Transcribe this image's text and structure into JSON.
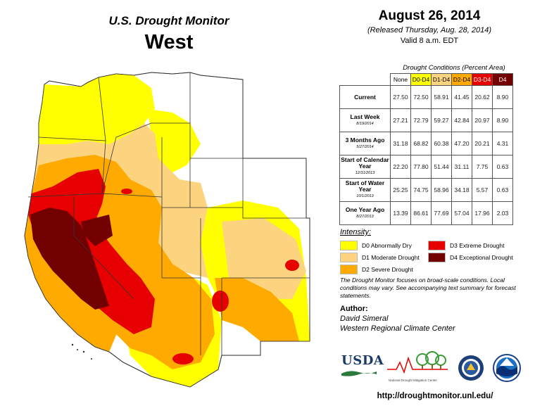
{
  "header": {
    "monitor_title": "U.S. Drought Monitor",
    "region": "West"
  },
  "date_block": {
    "date": "August 26, 2014",
    "released": "(Released Thursday, Aug. 28, 2014)",
    "valid": "Valid  8 a.m. EDT"
  },
  "table": {
    "title": "Drought Conditions (Percent Area)",
    "columns": [
      "None",
      "D0-D4",
      "D1-D4",
      "D2-D4",
      "D3-D4",
      "D4"
    ],
    "column_colors": [
      "#ffffff",
      "#ffff00",
      "#fcd37f",
      "#ffaa00",
      "#e60000",
      "#730000"
    ],
    "rows": [
      {
        "label": "Current",
        "date": "",
        "values": [
          "27.50",
          "72.50",
          "58.91",
          "41.45",
          "20.62",
          "8.90"
        ]
      },
      {
        "label": "Last Week",
        "date": "8/19/2014",
        "values": [
          "27.21",
          "72.79",
          "59.27",
          "42.84",
          "20.97",
          "8.90"
        ]
      },
      {
        "label": "3 Months Ago",
        "date": "5/27/2014",
        "values": [
          "31.18",
          "68.82",
          "60.38",
          "47.20",
          "20.21",
          "4.31"
        ]
      },
      {
        "label": "Start of Calendar Year",
        "date": "12/31/2013",
        "values": [
          "22.20",
          "77.80",
          "51.44",
          "31.11",
          "7.75",
          "0.63"
        ]
      },
      {
        "label": "Start of Water Year",
        "date": "10/1/2013",
        "values": [
          "25.25",
          "74.75",
          "58.96",
          "34.18",
          "5.57",
          "0.63"
        ]
      },
      {
        "label": "One Year Ago",
        "date": "8/27/2013",
        "values": [
          "13.39",
          "86.61",
          "77.69",
          "57.04",
          "17.96",
          "2.03"
        ]
      }
    ]
  },
  "legend": {
    "title": "Intensity:",
    "items": [
      {
        "label": "D0 Abnormally Dry",
        "color": "#ffff00"
      },
      {
        "label": "D1 Moderate Drought",
        "color": "#fcd37f"
      },
      {
        "label": "D2 Severe Drought",
        "color": "#ffaa00"
      },
      {
        "label": "D3 Extreme Drought",
        "color": "#e60000"
      },
      {
        "label": "D4 Exceptional Drought",
        "color": "#730000"
      }
    ]
  },
  "note": "The Drought Monitor focuses on broad-scale conditions. Local conditions may vary. See accompanying text summary for forecast statements.",
  "author": {
    "label": "Author:",
    "name": "David Simeral",
    "org": "Western Regional Climate Center"
  },
  "logos": {
    "usda": "USDA",
    "ndmc": "National Drought Mitigation Center"
  },
  "url": "http://droughtmonitor.unl.edu/"
}
